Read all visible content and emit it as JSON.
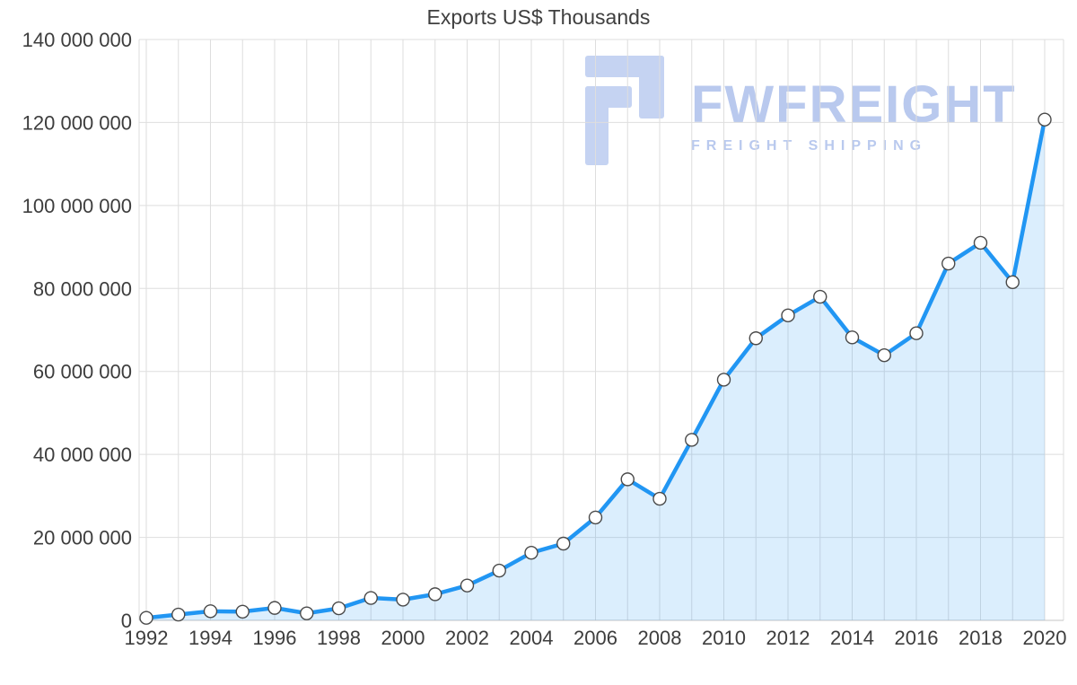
{
  "watermark": {
    "name": "FWFREIGHT",
    "tagline": "FREIGHT SHIPPING"
  },
  "chart_data": {
    "type": "area",
    "title": "Exports US$ Thousands",
    "xlabel": "",
    "ylabel": "",
    "x": [
      1992,
      1993,
      1994,
      1995,
      1996,
      1997,
      1998,
      1999,
      2000,
      2001,
      2002,
      2003,
      2004,
      2005,
      2006,
      2007,
      2008,
      2009,
      2010,
      2011,
      2012,
      2013,
      2014,
      2015,
      2016,
      2017,
      2018,
      2019,
      2020
    ],
    "series": [
      {
        "name": "Exports US$ Thousands",
        "values": [
          600000,
          1400000,
          2200000,
          2100000,
          3000000,
          1700000,
          2900000,
          5400000,
          5000000,
          6300000,
          8400000,
          12000000,
          16300000,
          18500000,
          24800000,
          34000000,
          29300000,
          43500000,
          58000000,
          68000000,
          73500000,
          78000000,
          68200000,
          63900000,
          69200000,
          86000000,
          91000000,
          81500000,
          120700000
        ]
      }
    ],
    "ylim": [
      0,
      140000000
    ],
    "y_ticks": [
      0,
      20000000,
      40000000,
      60000000,
      80000000,
      100000000,
      120000000,
      140000000
    ],
    "y_tick_labels": [
      "0",
      "20 000 000",
      "40 000 000",
      "60 000 000",
      "80 000 000",
      "100 000 000",
      "120 000 000",
      "140 000 000"
    ],
    "x_tick_labels": [
      "1992",
      "1994",
      "1996",
      "1998",
      "2000",
      "2002",
      "2004",
      "2006",
      "2008",
      "2010",
      "2012",
      "2014",
      "2016",
      "2018",
      "2020"
    ],
    "grid": true,
    "legend": "none",
    "colors": {
      "line": "#2196f3",
      "area_opacity": 0.16,
      "marker_fill": "#ffffff",
      "marker_stroke": "#4a4a4a",
      "grid": "#dedede",
      "axis": "#c4c4c4",
      "text": "#3d3d3d",
      "watermark": "#b9c9ee",
      "watermark_icon": "#c5d3f2"
    }
  }
}
